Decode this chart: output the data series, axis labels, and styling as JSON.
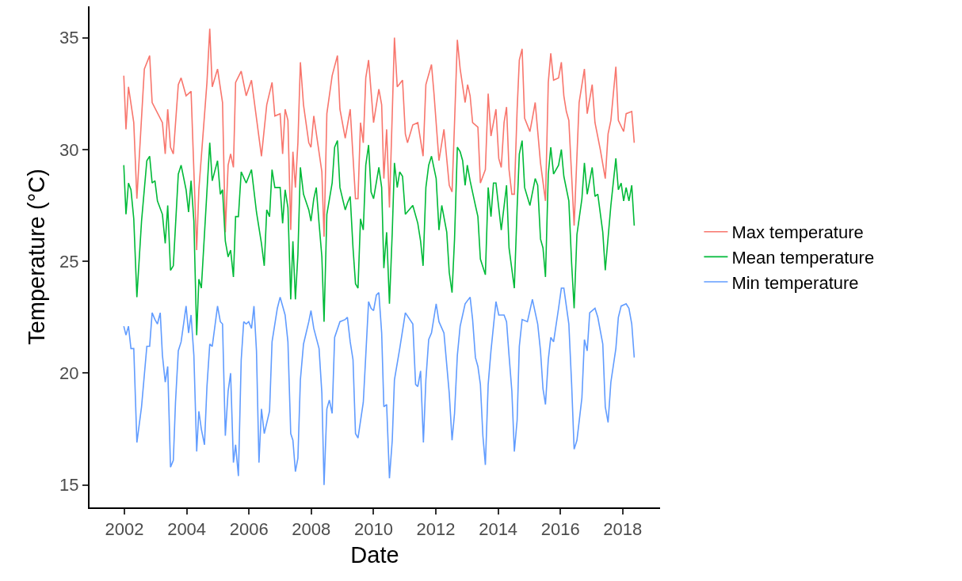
{
  "chart_data": {
    "type": "line",
    "xlabel": "Date",
    "ylabel": "Temperature (°C)",
    "xlim": [
      2000.88,
      2019.2
    ],
    "ylim": [
      14.0,
      36.4
    ],
    "xticks": [
      2002,
      2004,
      2006,
      2008,
      2010,
      2012,
      2014,
      2016,
      2018
    ],
    "yticks": [
      15,
      20,
      25,
      30,
      35
    ],
    "legend": "right",
    "series": [
      {
        "name": "Max temperature",
        "color": "#f8766d",
        "x": [
          2001.98,
          2002.05,
          2002.13,
          2002.3,
          2002.4,
          2002.64,
          2002.81,
          2002.89,
          2003.22,
          2003.31,
          2003.39,
          2003.48,
          2003.57,
          2003.73,
          2003.82,
          2003.98,
          2004.14,
          2004.32,
          2004.39,
          2004.65,
          2004.74,
          2004.82,
          2004.99,
          2005.15,
          2005.24,
          2005.33,
          2005.41,
          2005.5,
          2005.57,
          2005.75,
          2005.91,
          2006.08,
          2006.24,
          2006.4,
          2006.57,
          2006.74,
          2006.83,
          2007.0,
          2007.08,
          2007.16,
          2007.25,
          2007.34,
          2007.41,
          2007.49,
          2007.57,
          2007.65,
          2007.75,
          2007.92,
          2007.99,
          2008.08,
          2008.34,
          2008.41,
          2008.5,
          2008.67,
          2008.84,
          2008.92,
          2009.09,
          2009.25,
          2009.42,
          2009.5,
          2009.58,
          2009.67,
          2009.75,
          2009.84,
          2010.0,
          2010.17,
          2010.26,
          2010.33,
          2010.42,
          2010.51,
          2010.6,
          2010.67,
          2010.76,
          2010.93,
          2011.02,
          2011.09,
          2011.26,
          2011.42,
          2011.59,
          2011.68,
          2011.86,
          2011.94,
          2012.1,
          2012.26,
          2012.43,
          2012.52,
          2012.6,
          2012.69,
          2012.78,
          2012.94,
          2013.02,
          2013.1,
          2013.18,
          2013.35,
          2013.43,
          2013.59,
          2013.68,
          2013.77,
          2013.93,
          2014.02,
          2014.1,
          2014.19,
          2014.27,
          2014.35,
          2014.44,
          2014.52,
          2014.61,
          2014.68,
          2014.77,
          2014.85,
          2015.02,
          2015.1,
          2015.19,
          2015.36,
          2015.52,
          2015.61,
          2015.69,
          2015.78,
          2015.94,
          2016.03,
          2016.11,
          2016.19,
          2016.27,
          2016.44,
          2016.6,
          2016.77,
          2016.86,
          2017.02,
          2017.11,
          2017.28,
          2017.44,
          2017.53,
          2017.62,
          2017.78,
          2017.86,
          2018.03,
          2018.11,
          2018.29,
          2018.37
        ],
        "values": [
          33.3,
          30.9,
          32.8,
          31.2,
          27.8,
          33.6,
          34.2,
          32.1,
          31.2,
          29.8,
          31.8,
          30.1,
          29.8,
          32.9,
          33.2,
          32.4,
          32.6,
          25.5,
          28.2,
          33.0,
          35.4,
          32.8,
          33.6,
          32.1,
          26.3,
          29.3,
          29.8,
          29.2,
          33.0,
          33.5,
          32.4,
          33.1,
          31.4,
          29.7,
          32.0,
          33.0,
          31.5,
          31.6,
          29.8,
          31.8,
          31.3,
          26.4,
          29.9,
          28.3,
          30.3,
          33.9,
          32.0,
          30.3,
          30.1,
          31.5,
          29.0,
          26.1,
          31.6,
          33.3,
          34.2,
          31.8,
          30.5,
          31.8,
          27.8,
          27.8,
          31.2,
          30.3,
          33.2,
          34.0,
          31.2,
          32.7,
          32.0,
          28.7,
          30.9,
          27.4,
          31.6,
          35.0,
          32.8,
          33.1,
          30.7,
          30.3,
          31.1,
          31.2,
          29.7,
          32.9,
          33.8,
          32.5,
          29.5,
          30.9,
          28.4,
          28.1,
          31.2,
          34.9,
          33.6,
          32.1,
          32.9,
          32.4,
          31.2,
          31.0,
          28.5,
          29.1,
          32.5,
          30.6,
          31.8,
          29.6,
          29.2,
          31.2,
          31.9,
          29.1,
          28.0,
          28.0,
          31.8,
          34.0,
          34.5,
          31.4,
          30.8,
          31.4,
          32.1,
          29.4,
          27.7,
          33.0,
          34.3,
          33.1,
          33.2,
          33.9,
          32.4,
          31.7,
          31.3,
          26.6,
          32.1,
          33.6,
          31.6,
          32.9,
          31.2,
          30.0,
          28.7,
          30.7,
          31.3,
          33.7,
          31.3,
          30.8,
          31.6,
          31.7,
          30.3
        ]
      },
      {
        "name": "Mean temperature",
        "color": "#00ba38",
        "x": [
          2001.98,
          2002.05,
          2002.13,
          2002.21,
          2002.3,
          2002.4,
          2002.55,
          2002.72,
          2002.81,
          2002.89,
          2002.98,
          2003.06,
          2003.22,
          2003.31,
          2003.39,
          2003.48,
          2003.57,
          2003.73,
          2003.82,
          2003.98,
          2004.06,
          2004.14,
          2004.23,
          2004.32,
          2004.39,
          2004.47,
          2004.74,
          2004.82,
          2004.99,
          2005.08,
          2005.15,
          2005.24,
          2005.33,
          2005.41,
          2005.5,
          2005.57,
          2005.66,
          2005.75,
          2005.91,
          2006.08,
          2006.24,
          2006.4,
          2006.49,
          2006.57,
          2006.66,
          2006.74,
          2006.83,
          2007.0,
          2007.08,
          2007.16,
          2007.25,
          2007.34,
          2007.41,
          2007.49,
          2007.57,
          2007.65,
          2007.75,
          2007.92,
          2007.99,
          2008.08,
          2008.16,
          2008.25,
          2008.34,
          2008.41,
          2008.5,
          2008.67,
          2008.75,
          2008.84,
          2008.92,
          2009.09,
          2009.16,
          2009.25,
          2009.34,
          2009.42,
          2009.5,
          2009.58,
          2009.67,
          2009.75,
          2009.84,
          2009.92,
          2010.0,
          2010.17,
          2010.26,
          2010.33,
          2010.42,
          2010.51,
          2010.6,
          2010.67,
          2010.76,
          2010.84,
          2010.93,
          2011.02,
          2011.26,
          2011.42,
          2011.51,
          2011.59,
          2011.68,
          2011.77,
          2011.86,
          2012.01,
          2012.1,
          2012.19,
          2012.35,
          2012.43,
          2012.52,
          2012.6,
          2012.69,
          2012.78,
          2012.86,
          2012.94,
          2013.01,
          2013.1,
          2013.27,
          2013.35,
          2013.43,
          2013.59,
          2013.68,
          2013.77,
          2013.85,
          2013.93,
          2014.1,
          2014.27,
          2014.35,
          2014.52,
          2014.61,
          2014.68,
          2014.77,
          2014.85,
          2015.02,
          2015.19,
          2015.27,
          2015.36,
          2015.44,
          2015.52,
          2015.61,
          2015.69,
          2015.78,
          2015.94,
          2016.03,
          2016.11,
          2016.27,
          2016.36,
          2016.44,
          2016.53,
          2016.69,
          2016.77,
          2016.86,
          2017.02,
          2017.11,
          2017.2,
          2017.36,
          2017.44,
          2017.62,
          2017.78,
          2017.86,
          2017.95,
          2018.03,
          2018.11,
          2018.2,
          2018.29,
          2018.37
        ],
        "values": [
          29.3,
          27.1,
          28.5,
          28.2,
          26.9,
          23.4,
          26.8,
          29.5,
          29.7,
          28.5,
          28.6,
          27.7,
          27.1,
          25.8,
          27.5,
          24.6,
          24.8,
          28.9,
          29.3,
          28.2,
          27.2,
          28.6,
          26.8,
          21.7,
          24.2,
          23.8,
          30.3,
          28.6,
          29.5,
          28.0,
          28.2,
          25.9,
          25.2,
          25.5,
          24.3,
          27.0,
          27.0,
          29.0,
          28.5,
          29.1,
          27.2,
          25.8,
          24.8,
          27.3,
          27.0,
          29.1,
          28.3,
          28.3,
          26.7,
          28.2,
          27.4,
          23.3,
          25.9,
          23.3,
          25.3,
          29.2,
          28.0,
          27.3,
          26.8,
          27.8,
          28.3,
          26.7,
          25.2,
          22.3,
          27.1,
          28.5,
          30.1,
          30.4,
          28.3,
          27.3,
          27.6,
          27.9,
          25.6,
          24.0,
          23.8,
          26.9,
          26.4,
          29.3,
          30.2,
          28.1,
          27.8,
          29.2,
          28.3,
          24.7,
          26.3,
          23.1,
          26.3,
          29.4,
          28.3,
          29.0,
          28.8,
          27.1,
          27.5,
          26.7,
          25.9,
          24.8,
          28.3,
          29.3,
          29.7,
          28.7,
          26.4,
          27.5,
          26.3,
          24.5,
          23.6,
          26.0,
          30.1,
          29.9,
          29.5,
          28.4,
          29.3,
          28.6,
          27.5,
          27.0,
          25.1,
          24.4,
          28.3,
          27.0,
          28.5,
          28.5,
          26.4,
          28.4,
          25.6,
          23.8,
          27.4,
          29.8,
          30.4,
          28.3,
          27.5,
          28.7,
          28.4,
          26.0,
          25.6,
          24.3,
          28.9,
          30.1,
          28.9,
          29.3,
          30.0,
          28.8,
          27.7,
          24.9,
          22.9,
          26.2,
          27.8,
          29.4,
          28.0,
          29.2,
          27.9,
          28.0,
          26.3,
          24.6,
          27.5,
          29.6,
          28.2,
          28.5,
          27.7,
          28.3,
          27.7,
          28.4,
          26.6
        ]
      },
      {
        "name": "Min temperature",
        "color": "#619cff",
        "x": [
          2001.98,
          2002.05,
          2002.13,
          2002.21,
          2002.3,
          2002.4,
          2002.55,
          2002.72,
          2002.81,
          2002.89,
          2002.98,
          2003.06,
          2003.15,
          2003.22,
          2003.31,
          2003.39,
          2003.48,
          2003.57,
          2003.64,
          2003.73,
          2003.82,
          2003.98,
          2004.06,
          2004.14,
          2004.23,
          2004.32,
          2004.39,
          2004.47,
          2004.57,
          2004.65,
          2004.74,
          2004.82,
          2004.99,
          2005.08,
          2005.15,
          2005.24,
          2005.33,
          2005.41,
          2005.5,
          2005.57,
          2005.66,
          2005.75,
          2005.83,
          2005.91,
          2005.99,
          2006.08,
          2006.16,
          2006.24,
          2006.32,
          2006.4,
          2006.49,
          2006.66,
          2006.74,
          2006.91,
          2007.0,
          2007.16,
          2007.25,
          2007.34,
          2007.41,
          2007.49,
          2007.57,
          2007.65,
          2007.75,
          2007.92,
          2007.99,
          2008.08,
          2008.25,
          2008.34,
          2008.41,
          2008.5,
          2008.58,
          2008.67,
          2008.75,
          2008.92,
          2009.09,
          2009.16,
          2009.25,
          2009.34,
          2009.42,
          2009.5,
          2009.67,
          2009.75,
          2009.84,
          2009.92,
          2010.0,
          2010.09,
          2010.17,
          2010.26,
          2010.33,
          2010.42,
          2010.51,
          2010.6,
          2010.67,
          2010.84,
          2011.02,
          2011.26,
          2011.35,
          2011.42,
          2011.51,
          2011.6,
          2011.68,
          2011.77,
          2011.86,
          2012.01,
          2012.1,
          2012.26,
          2012.43,
          2012.52,
          2012.6,
          2012.69,
          2012.78,
          2012.94,
          2013.1,
          2013.18,
          2013.27,
          2013.35,
          2013.43,
          2013.51,
          2013.59,
          2013.68,
          2013.77,
          2013.93,
          2014.02,
          2014.19,
          2014.27,
          2014.35,
          2014.44,
          2014.52,
          2014.61,
          2014.68,
          2014.77,
          2014.94,
          2015.1,
          2015.27,
          2015.36,
          2015.44,
          2015.52,
          2015.61,
          2015.69,
          2015.78,
          2015.94,
          2016.03,
          2016.11,
          2016.27,
          2016.36,
          2016.44,
          2016.53,
          2016.69,
          2016.77,
          2016.86,
          2016.94,
          2017.11,
          2017.2,
          2017.36,
          2017.44,
          2017.53,
          2017.62,
          2017.78,
          2017.86,
          2017.95,
          2018.11,
          2018.2,
          2018.29,
          2018.37
        ],
        "values": [
          22.1,
          21.7,
          22.1,
          21.1,
          21.1,
          16.9,
          18.5,
          21.2,
          21.2,
          22.7,
          22.4,
          22.2,
          22.7,
          20.8,
          19.6,
          20.3,
          15.8,
          16.1,
          18.7,
          21.0,
          21.4,
          23.0,
          21.8,
          22.6,
          20.8,
          16.5,
          18.3,
          17.5,
          16.8,
          19.4,
          21.3,
          21.2,
          23.0,
          22.3,
          22.2,
          17.2,
          19.2,
          20.0,
          16.0,
          16.8,
          15.4,
          20.6,
          22.3,
          22.2,
          22.3,
          22.0,
          23.0,
          21.0,
          16.0,
          18.4,
          17.3,
          18.3,
          21.4,
          22.9,
          23.4,
          22.6,
          21.4,
          17.3,
          17.0,
          15.6,
          16.2,
          19.7,
          21.3,
          22.3,
          22.8,
          22.0,
          21.1,
          19.1,
          15.0,
          18.4,
          18.8,
          18.2,
          21.6,
          22.3,
          22.4,
          22.5,
          21.4,
          20.6,
          17.3,
          17.1,
          18.7,
          20.8,
          23.2,
          22.9,
          22.8,
          23.5,
          23.6,
          21.8,
          18.5,
          18.6,
          15.3,
          17.0,
          19.7,
          21.1,
          22.7,
          22.2,
          19.5,
          19.4,
          20.1,
          16.9,
          19.7,
          21.5,
          21.8,
          23.1,
          22.3,
          21.8,
          19.1,
          17.0,
          18.2,
          20.8,
          22.1,
          23.1,
          23.4,
          22.4,
          20.7,
          20.3,
          19.5,
          17.2,
          15.9,
          19.5,
          21.0,
          23.2,
          22.6,
          22.6,
          22.3,
          20.8,
          19.2,
          16.5,
          17.9,
          21.2,
          22.4,
          22.3,
          23.3,
          22.2,
          21.0,
          19.3,
          18.6,
          20.6,
          21.6,
          21.4,
          22.9,
          23.8,
          23.8,
          22.2,
          19.5,
          16.6,
          17.0,
          18.9,
          21.5,
          21.0,
          22.7,
          22.9,
          22.5,
          21.3,
          18.5,
          17.8,
          19.6,
          21.1,
          22.5,
          23.0,
          23.1,
          22.9,
          22.2,
          20.7
        ]
      }
    ]
  }
}
